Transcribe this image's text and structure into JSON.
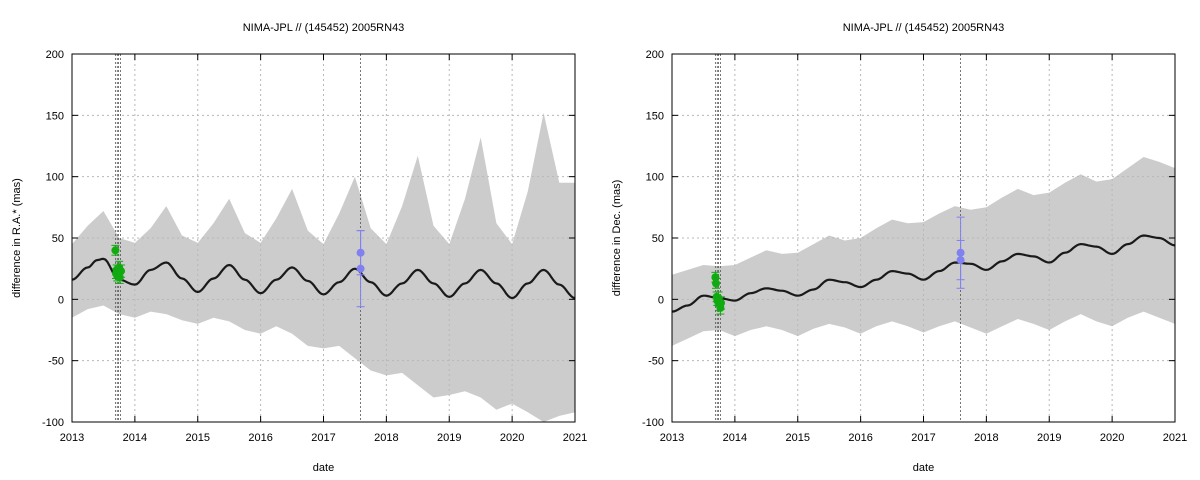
{
  "colors": {
    "band": "#cccccc",
    "model_line": "#1a1a1a",
    "ground_obs": "#11aa11",
    "gaia_obs": "#8080f0",
    "grid": "#b8b8b8",
    "vline": "#555555"
  },
  "chart_data": [
    {
      "type": "line",
      "title": "NIMA-JPL // (145452) 2005RN43",
      "xlabel": "date",
      "ylabel": "difference in R.A.* (mas)",
      "xlim": [
        2013,
        2021
      ],
      "ylim": [
        -100,
        200
      ],
      "xticks": [
        2013,
        2014,
        2015,
        2016,
        2017,
        2018,
        2019,
        2020,
        2021
      ],
      "yticks": [
        -100,
        -50,
        0,
        50,
        100,
        150,
        200
      ],
      "grid": true,
      "legend": "none",
      "vertical_lines": [
        2013.69,
        2013.72,
        2013.74,
        2013.77,
        2017.59
      ],
      "model_series": {
        "x": [
          2013.0,
          2013.25,
          2013.4,
          2013.5,
          2013.75,
          2014.0,
          2014.25,
          2014.5,
          2014.75,
          2015.0,
          2015.25,
          2015.5,
          2015.75,
          2016.0,
          2016.25,
          2016.5,
          2016.75,
          2017.0,
          2017.25,
          2017.5,
          2017.75,
          2018.0,
          2018.25,
          2018.5,
          2018.75,
          2019.0,
          2019.25,
          2019.5,
          2019.75,
          2020.0,
          2020.25,
          2020.5,
          2020.75,
          2021.0
        ],
        "y": [
          16,
          26,
          32,
          33,
          16,
          12,
          24,
          30,
          17,
          6,
          17,
          28,
          16,
          5,
          16,
          26,
          15,
          4,
          14,
          25,
          14,
          3,
          13,
          24,
          13,
          2,
          13,
          24,
          13,
          1,
          13,
          24,
          12,
          1
        ]
      },
      "uncertainty_band": {
        "x": [
          2013.0,
          2013.25,
          2013.5,
          2013.75,
          2014.0,
          2014.25,
          2014.5,
          2014.75,
          2015.0,
          2015.25,
          2015.5,
          2015.75,
          2016.0,
          2016.25,
          2016.5,
          2016.75,
          2017.0,
          2017.25,
          2017.5,
          2017.75,
          2018.0,
          2018.25,
          2018.5,
          2018.75,
          2019.0,
          2019.25,
          2019.5,
          2019.75,
          2020.0,
          2020.25,
          2020.5,
          2020.75,
          2021.0
        ],
        "upper": [
          45,
          60,
          72,
          50,
          46,
          58,
          76,
          52,
          46,
          62,
          82,
          54,
          46,
          66,
          90,
          56,
          45,
          70,
          100,
          58,
          45,
          76,
          117,
          60,
          45,
          82,
          132,
          62,
          45,
          88,
          152,
          95,
          95
        ],
        "lower": [
          -15,
          -8,
          -5,
          -12,
          -15,
          -10,
          -12,
          -17,
          -20,
          -15,
          -18,
          -25,
          -28,
          -22,
          -28,
          -38,
          -40,
          -38,
          -48,
          -58,
          -62,
          -60,
          -70,
          -80,
          -78,
          -75,
          -80,
          -90,
          -85,
          -92,
          -100,
          -95,
          -92
        ]
      },
      "observations": [
        {
          "group": "ground",
          "x": 2013.69,
          "y": 40,
          "err": 4
        },
        {
          "group": "ground",
          "x": 2013.7,
          "y": 21,
          "err": 4
        },
        {
          "group": "ground",
          "x": 2013.71,
          "y": 24,
          "err": 4
        },
        {
          "group": "ground",
          "x": 2013.72,
          "y": 19,
          "err": 4
        },
        {
          "group": "ground",
          "x": 2013.74,
          "y": 22,
          "err": 5
        },
        {
          "group": "ground",
          "x": 2013.75,
          "y": 26,
          "err": 5
        },
        {
          "group": "ground",
          "x": 2013.76,
          "y": 18,
          "err": 5
        },
        {
          "group": "ground",
          "x": 2013.78,
          "y": 23,
          "err": 5
        },
        {
          "group": "gaia",
          "x": 2017.59,
          "y": 38,
          "err": 18
        },
        {
          "group": "gaia",
          "x": 2017.59,
          "y": 25,
          "err": 31
        }
      ]
    },
    {
      "type": "line",
      "title": "NIMA-JPL // (145452) 2005RN43",
      "xlabel": "date",
      "ylabel": "difference in Dec. (mas)",
      "xlim": [
        2013,
        2021
      ],
      "ylim": [
        -100,
        200
      ],
      "xticks": [
        2013,
        2014,
        2015,
        2016,
        2017,
        2018,
        2019,
        2020,
        2021
      ],
      "yticks": [
        -100,
        -50,
        0,
        50,
        100,
        150,
        200
      ],
      "grid": true,
      "legend": "none",
      "vertical_lines": [
        2013.69,
        2013.72,
        2013.74,
        2013.77,
        2017.59
      ],
      "model_series": {
        "x": [
          2013.0,
          2013.25,
          2013.5,
          2013.75,
          2014.0,
          2014.25,
          2014.5,
          2014.75,
          2015.0,
          2015.25,
          2015.5,
          2015.75,
          2016.0,
          2016.25,
          2016.5,
          2016.75,
          2017.0,
          2017.25,
          2017.5,
          2017.75,
          2018.0,
          2018.25,
          2018.5,
          2018.75,
          2019.0,
          2019.25,
          2019.5,
          2019.75,
          2020.0,
          2020.25,
          2020.5,
          2020.75,
          2021.0
        ],
        "y": [
          -10,
          -5,
          3,
          1,
          -1,
          5,
          9,
          7,
          3,
          8,
          16,
          14,
          10,
          16,
          23,
          21,
          16,
          23,
          30,
          29,
          24,
          31,
          37,
          35,
          30,
          38,
          45,
          43,
          37,
          45,
          52,
          50,
          44
        ]
      },
      "uncertainty_band": {
        "x": [
          2013.0,
          2013.25,
          2013.5,
          2013.75,
          2014.0,
          2014.25,
          2014.5,
          2014.75,
          2015.0,
          2015.25,
          2015.5,
          2015.75,
          2016.0,
          2016.25,
          2016.5,
          2016.75,
          2017.0,
          2017.25,
          2017.5,
          2017.75,
          2018.0,
          2018.25,
          2018.5,
          2018.75,
          2019.0,
          2019.25,
          2019.5,
          2019.75,
          2020.0,
          2020.25,
          2020.5,
          2020.75,
          2021.0
        ],
        "upper": [
          20,
          24,
          28,
          27,
          28,
          34,
          40,
          37,
          38,
          45,
          52,
          48,
          50,
          58,
          65,
          62,
          63,
          70,
          76,
          73,
          75,
          83,
          90,
          85,
          87,
          95,
          102,
          96,
          98,
          107,
          116,
          112,
          107
        ],
        "lower": [
          -38,
          -32,
          -26,
          -25,
          -30,
          -25,
          -22,
          -25,
          -30,
          -24,
          -20,
          -23,
          -28,
          -22,
          -18,
          -22,
          -27,
          -22,
          -18,
          -23,
          -28,
          -22,
          -16,
          -20,
          -25,
          -18,
          -12,
          -18,
          -22,
          -15,
          -10,
          -15,
          -20
        ]
      },
      "observations": [
        {
          "group": "ground",
          "x": 2013.69,
          "y": 18,
          "err": 4
        },
        {
          "group": "ground",
          "x": 2013.7,
          "y": 13,
          "err": 4
        },
        {
          "group": "ground",
          "x": 2013.71,
          "y": 2,
          "err": 4
        },
        {
          "group": "ground",
          "x": 2013.72,
          "y": -1,
          "err": 4
        },
        {
          "group": "ground",
          "x": 2013.74,
          "y": 1,
          "err": 5
        },
        {
          "group": "ground",
          "x": 2013.75,
          "y": -4,
          "err": 5
        },
        {
          "group": "ground",
          "x": 2013.77,
          "y": -7,
          "err": 5
        },
        {
          "group": "ground",
          "x": 2013.78,
          "y": -3,
          "err": 5
        },
        {
          "group": "gaia",
          "x": 2017.59,
          "y": 38,
          "err": 29
        },
        {
          "group": "gaia",
          "x": 2017.59,
          "y": 32,
          "err": 16
        }
      ]
    }
  ]
}
